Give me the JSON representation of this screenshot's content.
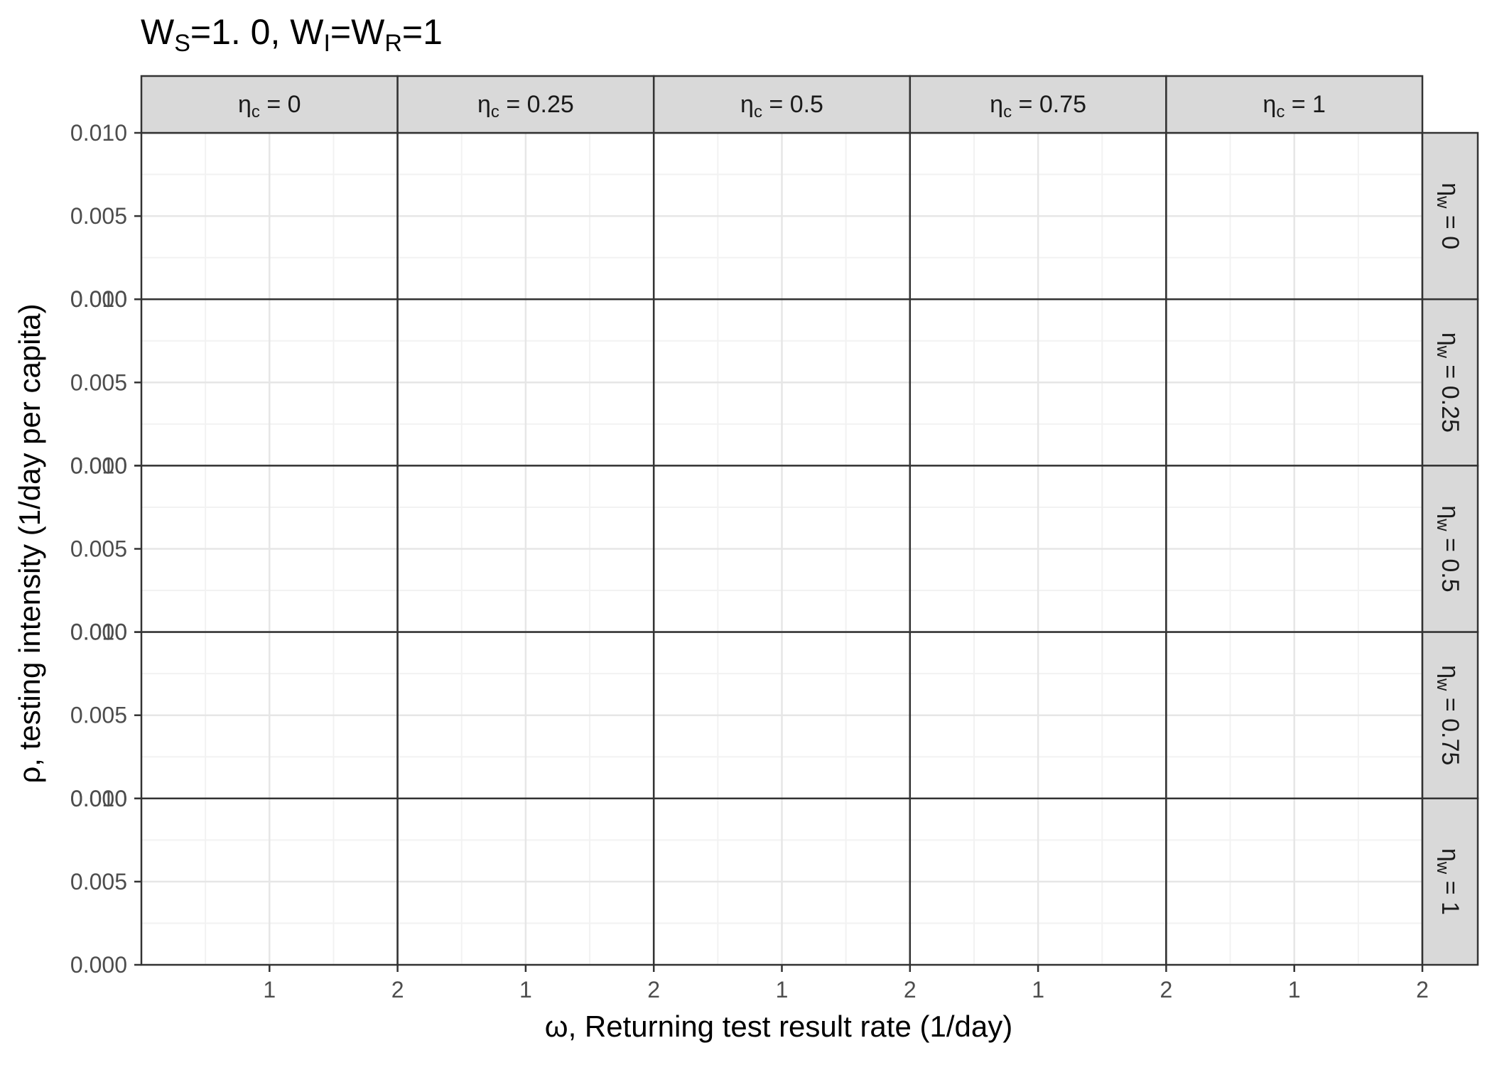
{
  "chart_data": {
    "type": "scatter",
    "title": {
      "parts": [
        {
          "text": "W",
          "sub": false
        },
        {
          "text": "S",
          "sub": true
        },
        {
          "text": "=1. 0, W",
          "sub": false
        },
        {
          "text": "I",
          "sub": true
        },
        {
          "text": "=W",
          "sub": false
        },
        {
          "text": "R",
          "sub": true
        },
        {
          "text": "=1",
          "sub": false
        }
      ]
    },
    "xlabel": "ω, Returning test result rate (1/day)",
    "ylabel": "ρ, testing intensity (1/day per capita)",
    "xlim": [
      0.0,
      2.0
    ],
    "ylim": [
      0.0,
      0.01
    ],
    "x_major_ticks": [
      1,
      2
    ],
    "x_minor_ticks": [
      0.5,
      1.5
    ],
    "y_major_ticks": [
      "0.000",
      "0.005",
      "0.010"
    ],
    "y_minor_ticks": [
      0.0025,
      0.0075
    ],
    "grid": true,
    "theme": "bw",
    "facet_cols": {
      "symbol": "η",
      "subscript": "c",
      "values": [
        "0",
        "0.25",
        "0.5",
        "0.75",
        "1"
      ]
    },
    "facet_rows": {
      "symbol": "η",
      "subscript": "w",
      "values": [
        "0",
        "0.25",
        "0.5",
        "0.75",
        "1"
      ]
    },
    "series": []
  }
}
